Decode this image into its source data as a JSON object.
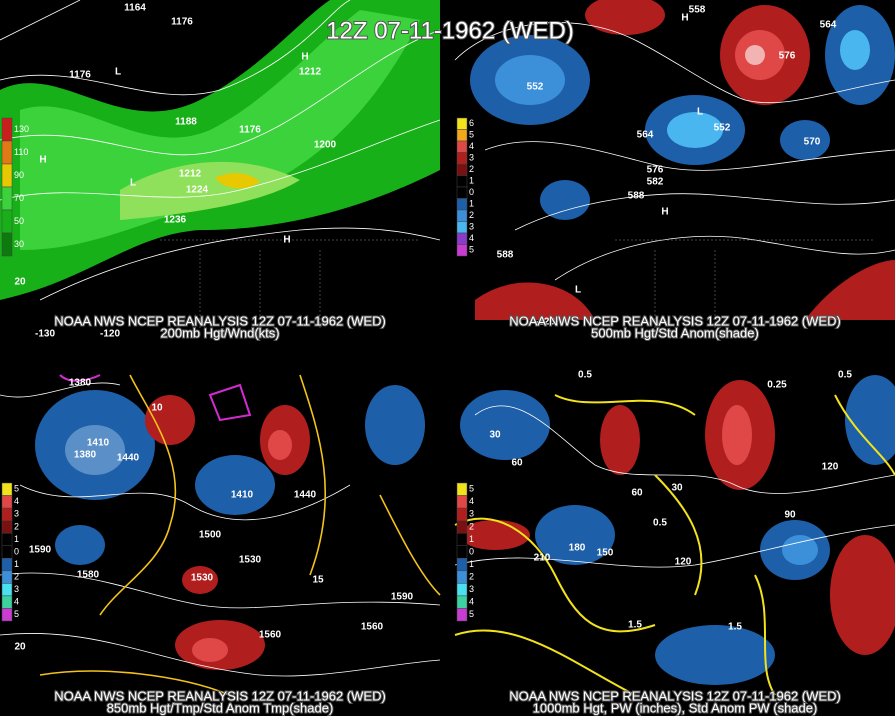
{
  "title": "12Z 07-11-1962 (WED)",
  "panels": [
    {
      "caption": [
        "NOAA NWS NCEP REANALYSIS 12Z 07-11-1962 (WED)",
        "200mb Hgt/Wnd(kts)"
      ],
      "legend": [
        "130",
        "110",
        "90",
        "70",
        "50",
        "30"
      ],
      "labels": [
        "1164",
        "1176",
        "1176",
        "L",
        "1188",
        "H",
        "1212",
        "1176",
        "1200",
        "1212",
        "1224",
        "1236",
        "H",
        "L",
        "H",
        "20",
        "-130",
        "-120"
      ]
    },
    {
      "caption": [
        "NOAA NWS NCEP REANALYSIS 12Z 07-11-1962 (WED)",
        "500mb Hgt/Std Anom(shade)"
      ],
      "legend": [
        "6",
        "5",
        "4",
        "3",
        "2",
        "1",
        "0",
        "1",
        "2",
        "3",
        "4",
        "5"
      ],
      "labels": [
        "558",
        "564",
        "576",
        "H",
        "552",
        "L",
        "564",
        "552",
        "570",
        "576",
        "582",
        "588",
        "H",
        "588",
        "L",
        "-120"
      ]
    },
    {
      "caption": [
        "NOAA NWS NCEP REANALYSIS 12Z 07-11-1962 (WED)",
        "850mb Hgt/Tmp/Std Anom Tmp(shade)"
      ],
      "legend": [
        "5",
        "4",
        "3",
        "2",
        "1",
        "0",
        "1",
        "2",
        "3",
        "4",
        "5"
      ],
      "labels": [
        "1380",
        "1410",
        "1440",
        "1380",
        "1410",
        "1440",
        "1500",
        "1530",
        "1590",
        "1580",
        "1530",
        "1560",
        "1560",
        "1590",
        "10",
        "15",
        "20"
      ]
    },
    {
      "caption": [
        "NOAA NWS NCEP REANALYSIS 12Z 07-11-1962 (WED)",
        "1000mb Hgt, PW (inches), Std Anom PW (shade)"
      ],
      "legend": [
        "5",
        "4",
        "3",
        "2",
        "1",
        "0",
        "1",
        "2",
        "3",
        "4",
        "5"
      ],
      "labels": [
        "0.5",
        "0.5",
        "30",
        "60",
        "30",
        "60",
        "90",
        "120",
        "210",
        "180",
        "150",
        "1.5",
        "0.25",
        "120",
        "0.5",
        "1.5"
      ]
    }
  ]
}
